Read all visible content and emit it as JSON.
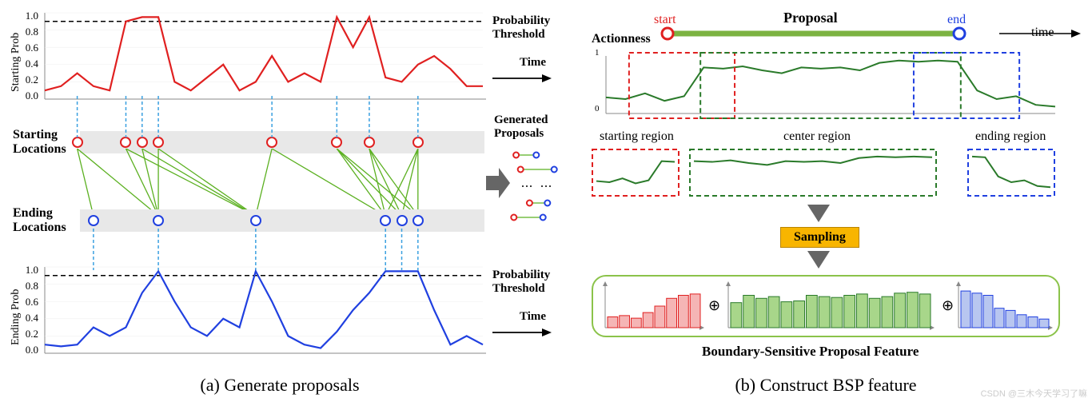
{
  "colors": {
    "red": "#e02020",
    "blue": "#2040e0",
    "green": "#5bb020",
    "dark_green": "#2a7a2a",
    "green_fill": "#a8d68a",
    "gray_band": "#e8e8e8",
    "gray_arrow": "#666666",
    "orange": "#f8b500",
    "black": "#000000",
    "dash": "#404040"
  },
  "panel_a": {
    "caption": "(a) Generate proposals",
    "start_chart": {
      "ylabel": "Starting Prob",
      "threshold": 0.9,
      "threshold_label": "Probability Threshold",
      "time_label": "Time",
      "yticks": [
        "0.0",
        "0.2",
        "0.4",
        "0.6",
        "0.8",
        "1.0"
      ],
      "values": [
        0.1,
        0.15,
        0.3,
        0.15,
        0.1,
        0.9,
        0.95,
        0.95,
        0.2,
        0.1,
        0.25,
        0.4,
        0.1,
        0.2,
        0.5,
        0.2,
        0.3,
        0.2,
        0.95,
        0.6,
        0.95,
        0.25,
        0.2,
        0.4,
        0.5,
        0.35,
        0.15,
        0.15
      ],
      "markers_x": [
        2,
        5,
        6,
        7,
        14,
        18,
        20,
        23
      ],
      "line_color": "#e02020"
    },
    "end_chart": {
      "ylabel": "Ending Prob",
      "threshold": 0.9,
      "threshold_label": "Probability Threshold",
      "time_label": "Time",
      "yticks": [
        "0.0",
        "0.2",
        "0.4",
        "0.6",
        "0.8",
        "1.0"
      ],
      "values": [
        0.1,
        0.08,
        0.1,
        0.3,
        0.2,
        0.3,
        0.7,
        0.95,
        0.6,
        0.3,
        0.2,
        0.4,
        0.3,
        0.95,
        0.6,
        0.2,
        0.1,
        0.06,
        0.25,
        0.5,
        0.7,
        0.95,
        0.95,
        0.95,
        0.5,
        0.1,
        0.2,
        0.1
      ],
      "markers_x": [
        3,
        7,
        13,
        21,
        22,
        23
      ],
      "line_color": "#2040e0"
    },
    "start_loc_label": "Starting Locations",
    "end_loc_label": "Ending Locations",
    "gen_prop_label": "Generated Proposals",
    "proposals": [
      {
        "s": 0,
        "e": 0
      },
      {
        "s": 0,
        "e": 1
      },
      {
        "s": 1,
        "e": 1
      },
      {
        "s": 2,
        "e": 1
      },
      {
        "s": 3,
        "e": 1
      },
      {
        "s": 1,
        "e": 2
      },
      {
        "s": 2,
        "e": 2
      },
      {
        "s": 3,
        "e": 2
      },
      {
        "s": 4,
        "e": 2
      },
      {
        "s": 4,
        "e": 3
      },
      {
        "s": 5,
        "e": 3
      },
      {
        "s": 6,
        "e": 3
      },
      {
        "s": 7,
        "e": 3
      },
      {
        "s": 5,
        "e": 4
      },
      {
        "s": 6,
        "e": 4
      },
      {
        "s": 7,
        "e": 4
      },
      {
        "s": 5,
        "e": 5
      },
      {
        "s": 6,
        "e": 5
      },
      {
        "s": 7,
        "e": 5
      }
    ],
    "mini_proposals": [
      {
        "s": 0.1,
        "e": 0.55
      },
      {
        "s": 0.2,
        "e": 0.95
      },
      {
        "s": 0.4,
        "e": 0.8
      },
      {
        "s": 0.05,
        "e": 0.7
      }
    ]
  },
  "panel_b": {
    "caption": "(b) Construct BSP feature",
    "actionness_label": "Actionness",
    "start_label": "start",
    "end_label": "end",
    "proposal_label": "Proposal",
    "time_label": "time",
    "actionness_values": [
      0.28,
      0.25,
      0.35,
      0.22,
      0.3,
      0.8,
      0.78,
      0.82,
      0.75,
      0.7,
      0.8,
      0.78,
      0.8,
      0.75,
      0.88,
      0.92,
      0.9,
      0.92,
      0.9,
      0.4,
      0.25,
      0.3,
      0.15,
      0.12
    ],
    "starting_region_label": "starting region",
    "center_region_label": "center region",
    "ending_region_label": "ending region",
    "start_reg_values": [
      0.28,
      0.25,
      0.35,
      0.22,
      0.3,
      0.8,
      0.78
    ],
    "center_reg_values": [
      0.8,
      0.78,
      0.82,
      0.75,
      0.7,
      0.8,
      0.78,
      0.8,
      0.75,
      0.88,
      0.92,
      0.9,
      0.92,
      0.9
    ],
    "end_reg_values": [
      0.92,
      0.9,
      0.4,
      0.25,
      0.3,
      0.15,
      0.12
    ],
    "sampling_label": "Sampling",
    "bsp_label": "Boundary-Sensitive Proposal Feature",
    "bars_red": [
      0.25,
      0.28,
      0.22,
      0.35,
      0.5,
      0.68,
      0.75,
      0.78
    ],
    "bars_green": [
      0.58,
      0.75,
      0.68,
      0.72,
      0.6,
      0.62,
      0.75,
      0.72,
      0.7,
      0.75,
      0.78,
      0.68,
      0.72,
      0.8,
      0.82,
      0.78
    ],
    "bars_blue": [
      0.85,
      0.8,
      0.75,
      0.45,
      0.4,
      0.3,
      0.25,
      0.2
    ]
  },
  "watermark": "CSDN @三木今天学习了嘛"
}
